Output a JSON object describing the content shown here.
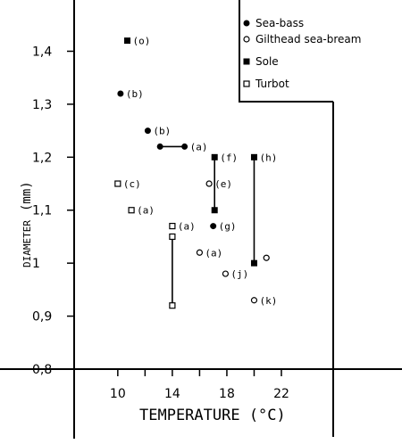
{
  "chart_data": {
    "type": "scatter",
    "xlabel": "TEMPERATURE (°C)",
    "ylabel_prefix": "DIAMETER",
    "ylabel_suffix": "(mm)",
    "xticks": [
      10,
      14,
      18,
      22
    ],
    "xtick_labels": [
      "10",
      "14",
      "18",
      "22"
    ],
    "yticks": [
      0.8,
      0.9,
      1.0,
      1.1,
      1.2,
      1.3,
      1.4
    ],
    "ytick_labels": [
      "0,8",
      "0,9",
      "1",
      "1,1",
      "1,2",
      "1,3",
      "1,4"
    ],
    "xlim": [
      6.8,
      25.8
    ],
    "ylim": [
      0.8,
      1.49
    ],
    "grid": false,
    "legend_placement": "top-right",
    "series": [
      {
        "name": "Sea-bass",
        "marker": "filled-circle",
        "points": [
          {
            "x": 10.2,
            "y": 1.32,
            "label": "(b)"
          },
          {
            "x": 12.2,
            "y": 1.25,
            "label": "(b)"
          },
          {
            "x": 13.1,
            "y": 1.22,
            "label": ""
          },
          {
            "x": 14.9,
            "y": 1.22,
            "label": "(a)"
          },
          {
            "x": 17.0,
            "y": 1.07,
            "label": "(g)"
          }
        ]
      },
      {
        "name": "Gilthead sea-bream",
        "marker": "open-circle",
        "points": [
          {
            "x": 16.7,
            "y": 1.15,
            "label": "(e)"
          },
          {
            "x": 16.0,
            "y": 1.02,
            "label": "(a)"
          },
          {
            "x": 17.9,
            "y": 0.98,
            "label": "(j)"
          },
          {
            "x": 20.9,
            "y": 1.01,
            "label": ""
          },
          {
            "x": 20.0,
            "y": 0.93,
            "label": "(k)"
          }
        ]
      },
      {
        "name": "Sole",
        "marker": "filled-square",
        "points": [
          {
            "x": 10.7,
            "y": 1.42,
            "label": "(o)"
          },
          {
            "x": 17.1,
            "y": 1.2,
            "label": "(f)"
          },
          {
            "x": 17.1,
            "y": 1.1,
            "label": ""
          },
          {
            "x": 20.0,
            "y": 1.2,
            "label": "(h)"
          },
          {
            "x": 20.0,
            "y": 1.0,
            "label": ""
          }
        ]
      },
      {
        "name": "Turbot",
        "marker": "open-square",
        "points": [
          {
            "x": 10.0,
            "y": 1.15,
            "label": "(c)"
          },
          {
            "x": 11.0,
            "y": 1.1,
            "label": "(a)"
          },
          {
            "x": 14.0,
            "y": 1.07,
            "label": "(a)"
          },
          {
            "x": 14.0,
            "y": 1.05,
            "label": ""
          },
          {
            "x": 14.0,
            "y": 0.92,
            "label": ""
          }
        ]
      }
    ],
    "ranges": [
      {
        "series": "Sea-bass",
        "x1": 13.1,
        "x2": 14.9,
        "y1": 1.22,
        "y2": 1.22
      },
      {
        "series": "Sole",
        "x1": 17.1,
        "x2": 17.1,
        "y1": 1.2,
        "y2": 1.1
      },
      {
        "series": "Sole",
        "x1": 20.0,
        "x2": 20.0,
        "y1": 1.2,
        "y2": 1.0
      },
      {
        "series": "Turbot",
        "x1": 14.0,
        "x2": 14.0,
        "y1": 1.05,
        "y2": 0.92
      }
    ]
  }
}
